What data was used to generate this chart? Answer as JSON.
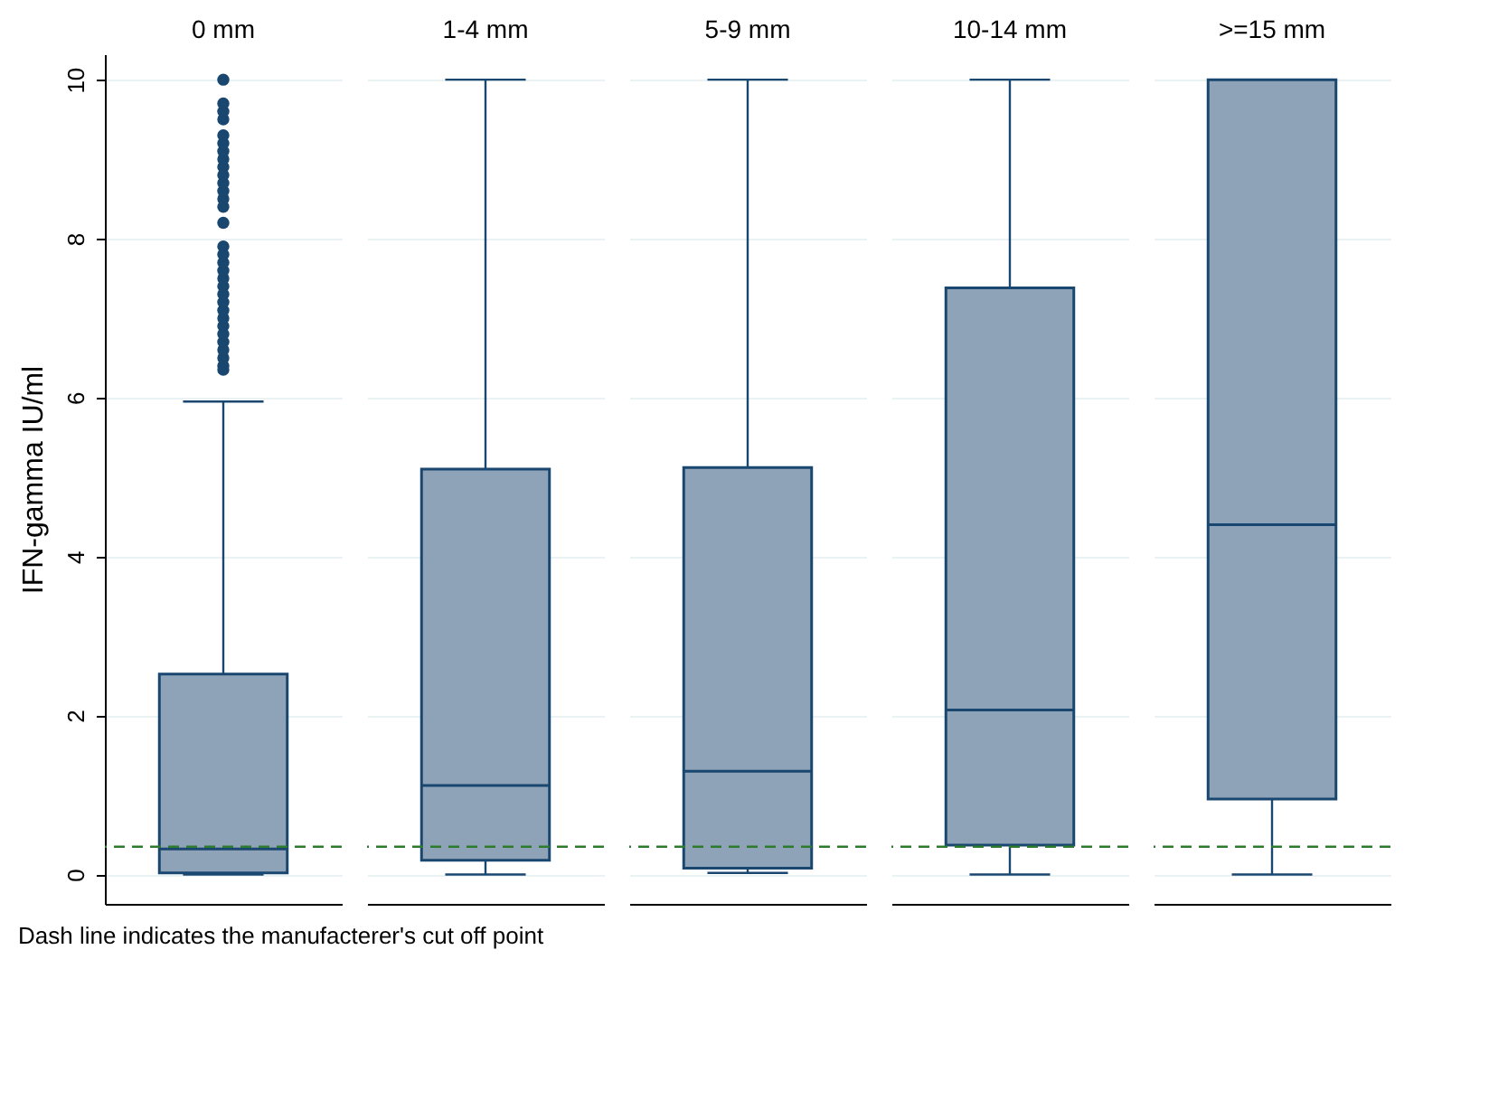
{
  "chart_data": {
    "type": "box",
    "categories": [
      "0 mm",
      "1-4 mm",
      "5-9 mm",
      "10-14 mm",
      ">=15 mm"
    ],
    "ylabel": "IFN-gamma IU/ml",
    "ylim": [
      -0.37,
      10.32
    ],
    "yticks": [
      0,
      2,
      4,
      6,
      8,
      10
    ],
    "grid": "y",
    "series": [
      {
        "color": "#8ea3b8",
        "boxes": [
          {
            "low": 0,
            "q1": 0.02,
            "median": 0.32,
            "q3": 2.52,
            "high": 5.95,
            "outliers": [
              6.35,
              6.4,
              6.5,
              6.6,
              6.7,
              6.8,
              6.9,
              7.0,
              7.1,
              7.2,
              7.3,
              7.4,
              7.5,
              7.6,
              7.7,
              7.8,
              7.9,
              8.2,
              8.4,
              8.5,
              8.6,
              8.7,
              8.8,
              8.9,
              9.0,
              9.1,
              9.2,
              9.3,
              9.5,
              9.6,
              9.7,
              10
            ]
          },
          {
            "low": 0,
            "q1": 0.18,
            "median": 1.12,
            "q3": 5.1,
            "high": 10
          },
          {
            "low": 0.02,
            "q1": 0.08,
            "median": 1.3,
            "q3": 5.12,
            "high": 10
          },
          {
            "low": 0,
            "q1": 0.37,
            "median": 2.07,
            "q3": 7.38,
            "high": 10
          },
          {
            "low": 0,
            "q1": 0.95,
            "median": 4.4,
            "q3": 10,
            "high": 10
          }
        ]
      }
    ],
    "ref_lines": [
      {
        "axis": "y",
        "value": 0.35,
        "color": "#2d7b2d",
        "line_style": "dashed"
      }
    ],
    "annotations": [
      "Dash line indicates the manufacterer's cut off point"
    ]
  }
}
